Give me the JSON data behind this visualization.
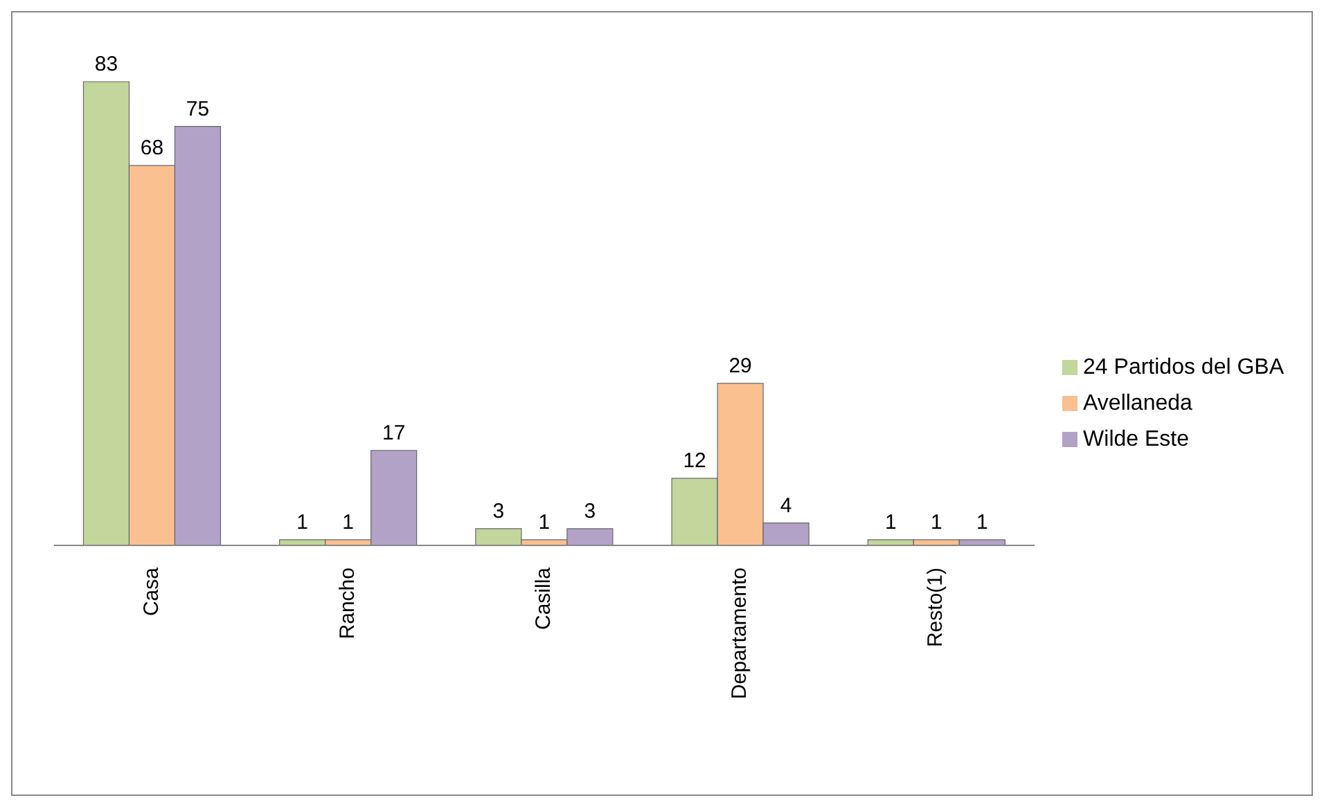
{
  "chart_data": {
    "type": "bar",
    "categories": [
      "Casa",
      "Rancho",
      "Casilla",
      "Departamento",
      "Resto(1)"
    ],
    "series": [
      {
        "name": "24 Partidos del GBA",
        "color": "#c3d69b",
        "values": [
          83,
          1,
          3,
          12,
          1
        ]
      },
      {
        "name": "Avellaneda",
        "color": "#fac090",
        "values": [
          68,
          1,
          1,
          29,
          1
        ]
      },
      {
        "name": "Wilde Este",
        "color": "#b3a2c7",
        "values": [
          75,
          17,
          3,
          4,
          1
        ]
      }
    ],
    "data_labels": true,
    "legend": "right",
    "grid": false
  }
}
